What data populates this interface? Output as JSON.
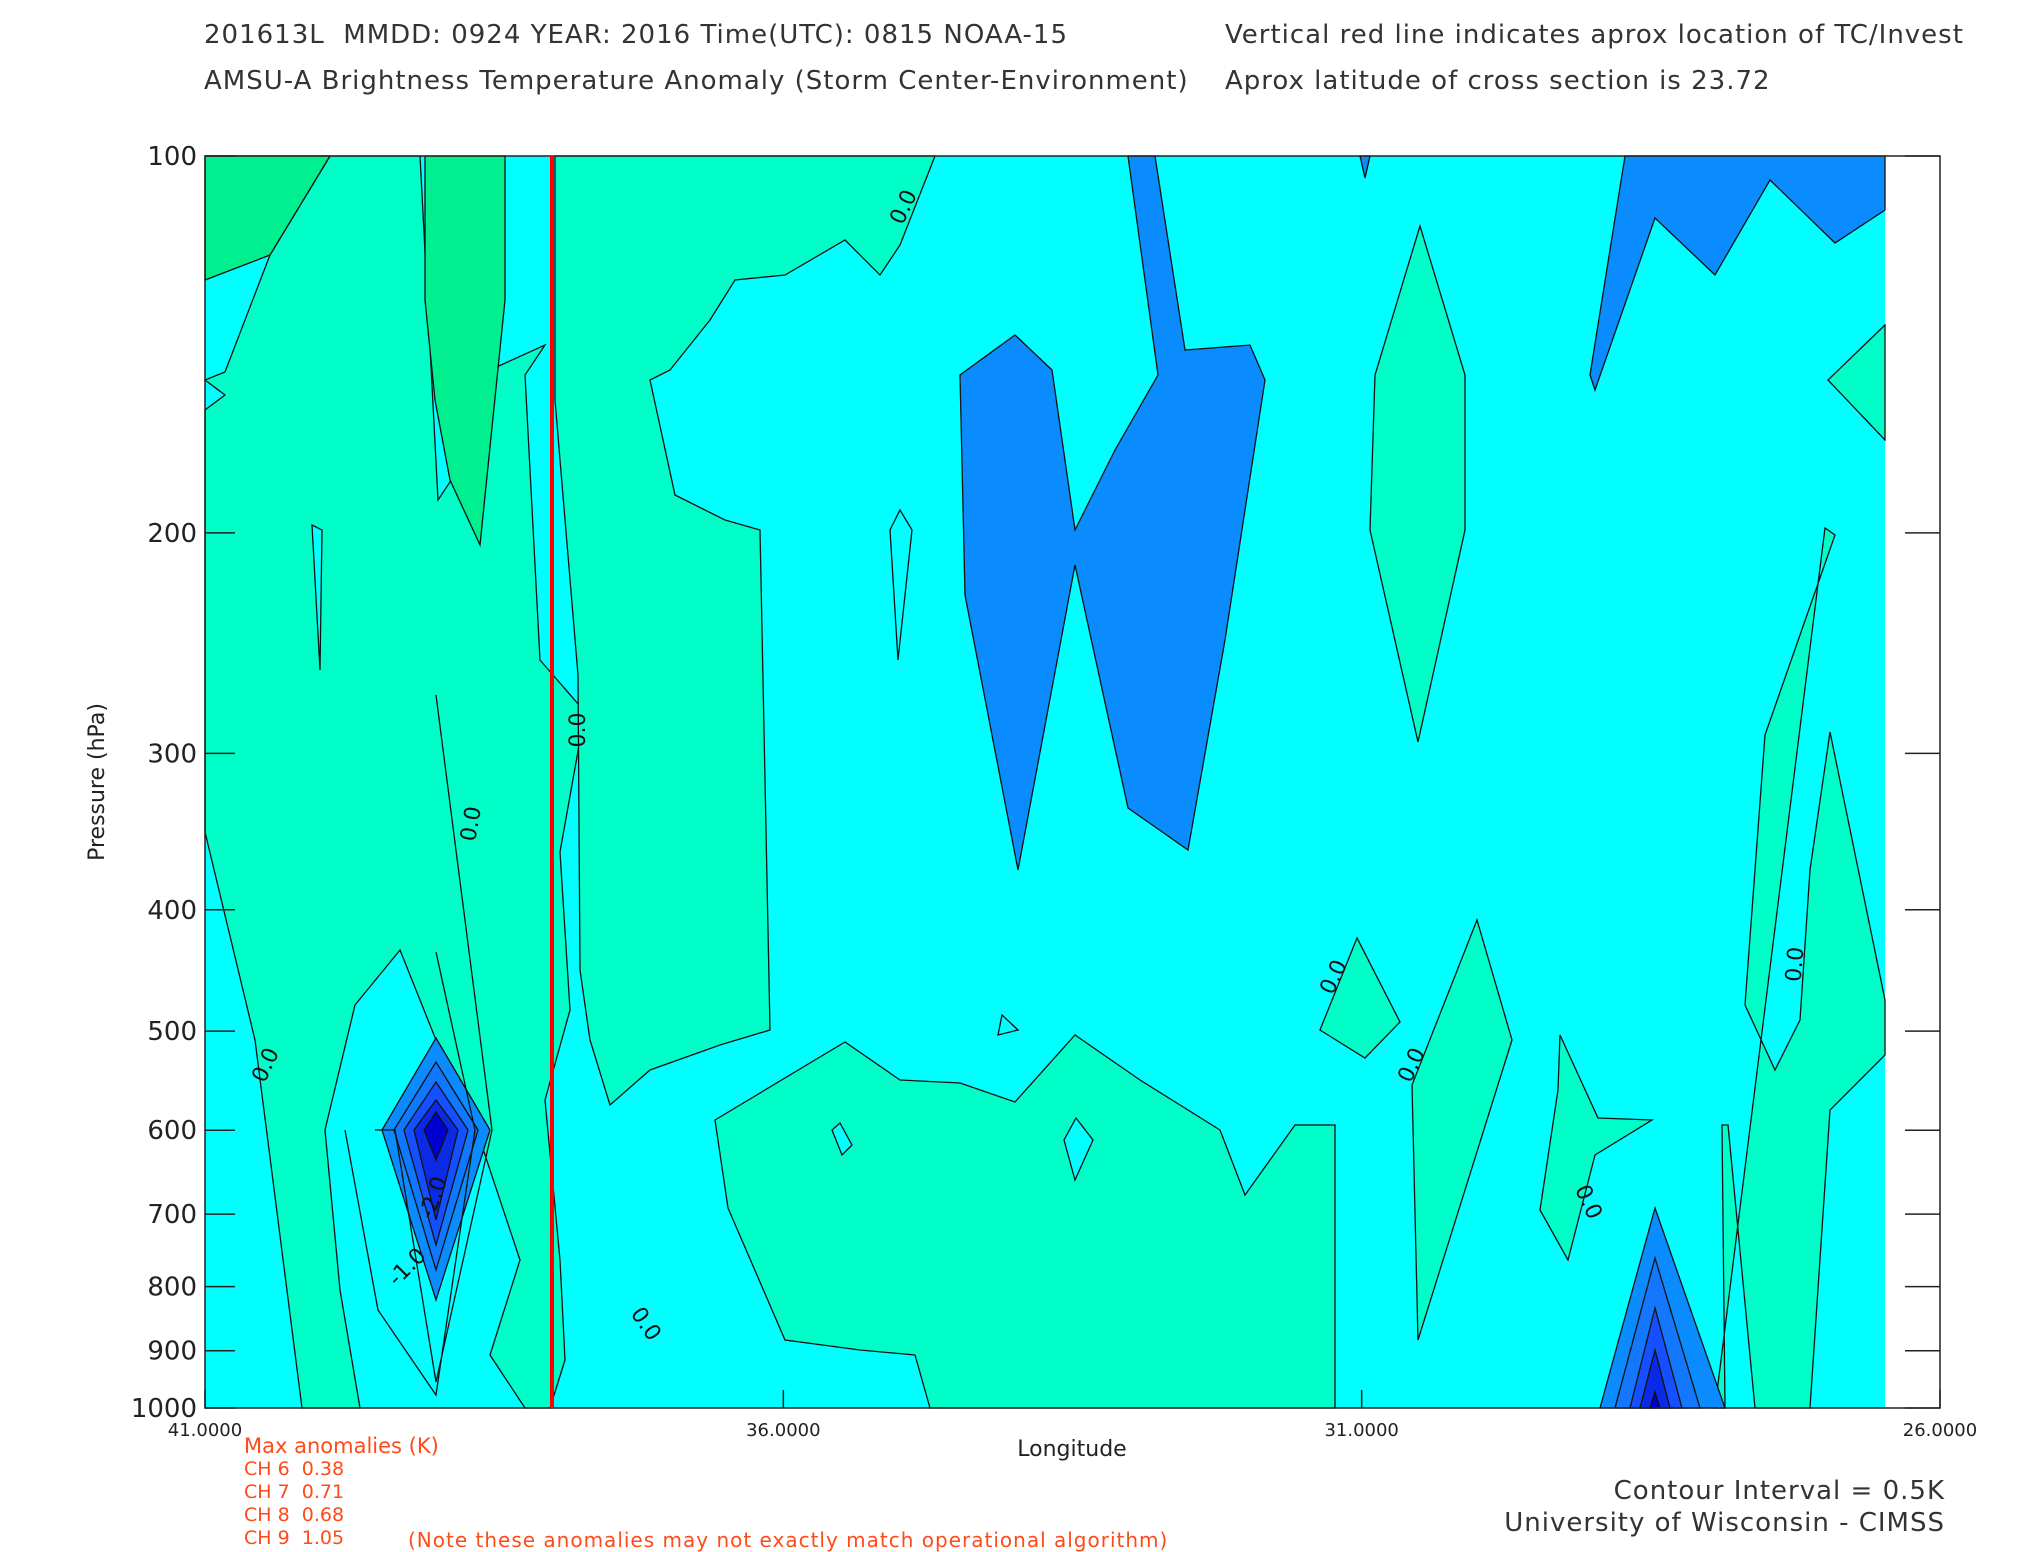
{
  "header": {
    "line1_left": "201613L  MMDD: 0924 YEAR: 2016 Time(UTC): 0815 NOAA-15",
    "line2_left": "AMSU-A Brightness Temperature Anomaly (Storm Center-Environment)",
    "line1_right": "Vertical red line indicates aprox location of TC/Invest",
    "line2_right": "Aprox latitude of cross section is 23.72"
  },
  "chart_data": {
    "type": "contour",
    "xlabel": "Longitude",
    "ylabel": "Pressure (hPa)",
    "x_range": [
      41.0,
      26.0
    ],
    "y_range": [
      100,
      1000
    ],
    "y_scale": "log",
    "x_ticks": [
      "41.0000",
      "36.0000",
      "31.0000",
      "26.0000"
    ],
    "y_ticks": [
      "100",
      "200",
      "300",
      "400",
      "500",
      "600",
      "700",
      "800",
      "900",
      "1000"
    ],
    "storm_longitude": 38.0,
    "contour_interval_K": 0.5,
    "contour_labels": [
      "0.0",
      "0.0",
      "0.0",
      "0.0",
      "0.0",
      "0.0",
      "0.0",
      "0.0",
      "0.0",
      "-2.0",
      "-1.0"
    ],
    "colors": {
      "storm_line": "#ff0000",
      "level_minus_3": "#0000d0",
      "level_minus_2_5": "#0a2ae6",
      "level_minus_2": "#1450ff",
      "level_minus_1_5": "#0f78ff",
      "level_minus_1": "#0a8cff",
      "level_minus_0_5": "#00ffff",
      "level_0": "#00ffc8",
      "level_0_5": "#00f090"
    }
  },
  "anomalies": {
    "title": "Max anomalies (K)",
    "lines": [
      "CH 6  0.38",
      "CH 7  0.71",
      "CH 8  0.68",
      "CH 9  1.05"
    ],
    "note": "(Note these anomalies may not exactly match operational algorithm)"
  },
  "footer": {
    "contour_interval": "Contour Interval = 0.5K",
    "credit": "University of Wisconsin - CIMSS"
  }
}
